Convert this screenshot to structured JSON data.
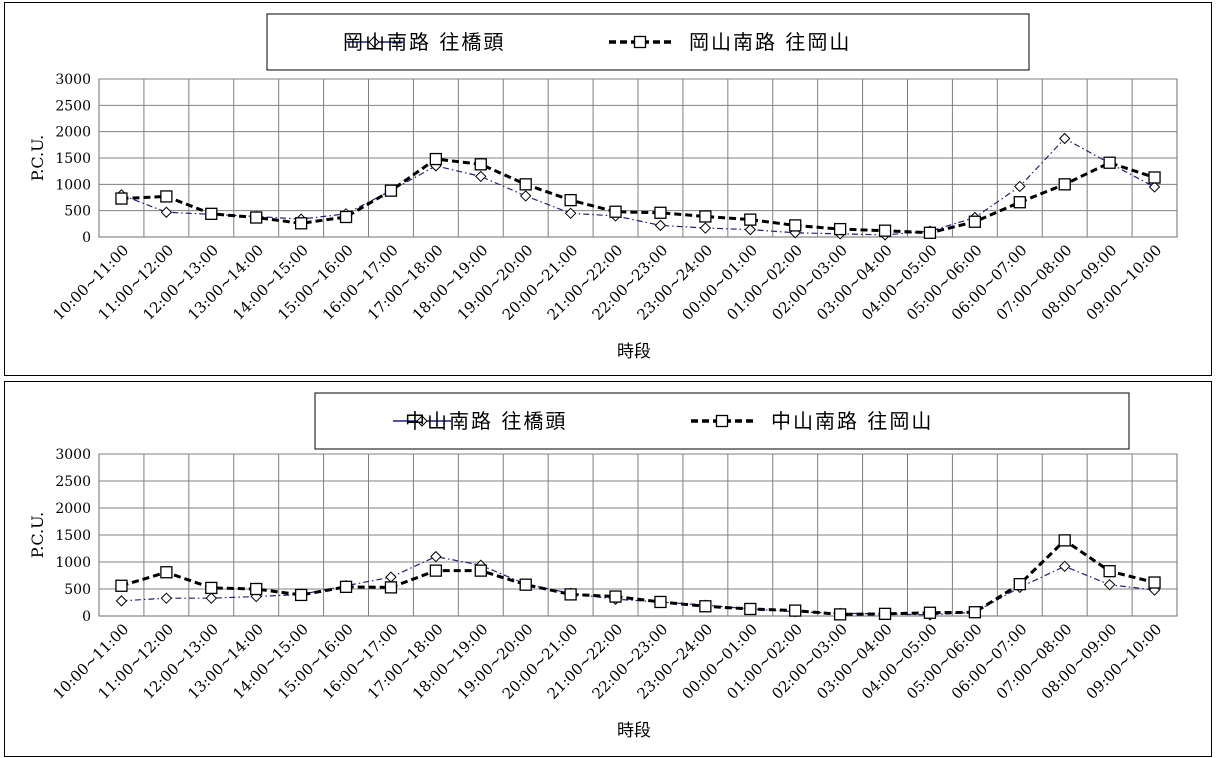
{
  "chart_data": [
    {
      "type": "line",
      "categories": [
        "10:00~11:00",
        "11:00~12:00",
        "12:00~13:00",
        "13:00~14:00",
        "14:00~15:00",
        "15:00~16:00",
        "16:00~17:00",
        "17:00~18:00",
        "18:00~19:00",
        "19:00~20:00",
        "20:00~21:00",
        "21:00~22:00",
        "22:00~23:00",
        "23:00~24:00",
        "00:00~01:00",
        "01:00~02:00",
        "02:00~03:00",
        "03:00~04:00",
        "04:00~05:00",
        "05:00~06:00",
        "06:00~07:00",
        "07:00~08:00",
        "08:00~09:00",
        "09:00~10:00"
      ],
      "series": [
        {
          "name": "岡山南路 往橋頭",
          "values": [
            800,
            470,
            430,
            390,
            340,
            440,
            880,
            1350,
            1150,
            780,
            450,
            400,
            220,
            170,
            140,
            80,
            60,
            40,
            110,
            370,
            960,
            1870,
            1400,
            950
          ]
        },
        {
          "name": "岡山南路 往岡山",
          "values": [
            730,
            770,
            440,
            370,
            260,
            380,
            880,
            1480,
            1380,
            1000,
            700,
            480,
            460,
            390,
            330,
            220,
            150,
            120,
            80,
            290,
            660,
            1000,
            1410,
            1130
          ]
        }
      ],
      "xlabel": "時段",
      "ylabel": "P.C.U.",
      "ylim": [
        0,
        3000
      ],
      "yticks": [
        0,
        500,
        1000,
        1500,
        2000,
        2500,
        3000
      ],
      "grid": true,
      "legend": "top"
    },
    {
      "type": "line",
      "categories": [
        "10:00~11:00",
        "11:00~12:00",
        "12:00~13:00",
        "13:00~14:00",
        "14:00~15:00",
        "15:00~16:00",
        "16:00~17:00",
        "17:00~18:00",
        "18:00~19:00",
        "19:00~20:00",
        "20:00~21:00",
        "21:00~22:00",
        "22:00~23:00",
        "23:00~24:00",
        "00:00~01:00",
        "01:00~02:00",
        "02:00~03:00",
        "03:00~04:00",
        "04:00~05:00",
        "05:00~06:00",
        "06:00~07:00",
        "07:00~08:00",
        "08:00~09:00",
        "09:00~10:00"
      ],
      "series": [
        {
          "name": "中山南路 往橋頭",
          "values": [
            280,
            330,
            330,
            360,
            400,
            560,
            720,
            1100,
            940,
            590,
            420,
            310,
            260,
            200,
            130,
            80,
            50,
            40,
            20,
            70,
            530,
            920,
            580,
            480
          ]
        },
        {
          "name": "中山南路 往岡山",
          "values": [
            560,
            810,
            520,
            500,
            390,
            540,
            530,
            840,
            840,
            580,
            400,
            360,
            260,
            180,
            130,
            100,
            30,
            40,
            60,
            70,
            590,
            1400,
            830,
            620
          ]
        }
      ],
      "xlabel": "時段",
      "ylabel": "P.C.U.",
      "ylim": [
        0,
        3000
      ],
      "yticks": [
        0,
        500,
        1000,
        1500,
        2000,
        2500,
        3000
      ],
      "grid": true,
      "legend": "top"
    }
  ],
  "colors": {
    "series_toward_qiaotou": "#1f1f7a",
    "series_toward_gangshan": "#000000",
    "grid": "#808080",
    "background": "#ffffff"
  }
}
